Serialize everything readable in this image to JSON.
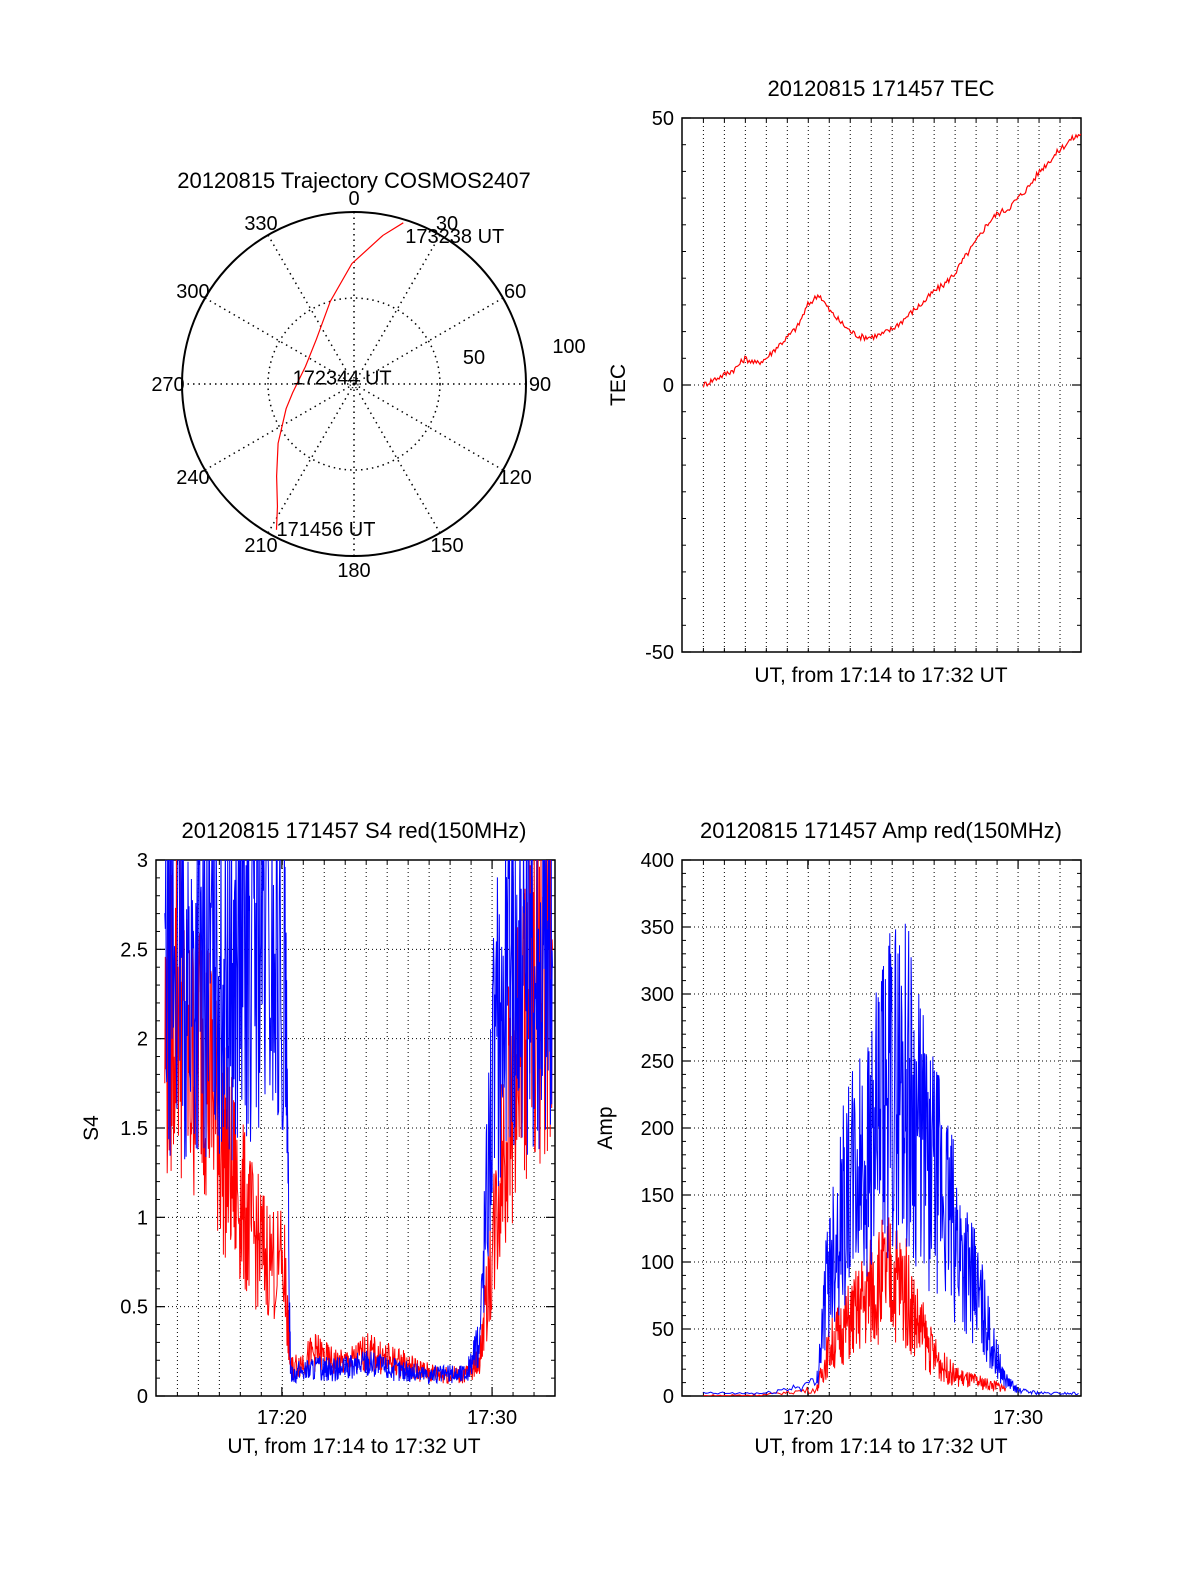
{
  "colors": {
    "red": "#ff0000",
    "blue": "#0000ff",
    "axis": "#000000",
    "grid": "#000000"
  },
  "chart_data": [
    {
      "type": "polar",
      "title": "20120815 Trajectory COSMOS2407",
      "angle_labels": [
        "0",
        "30",
        "60",
        "90",
        "120",
        "150",
        "180",
        "210",
        "240",
        "270",
        "300",
        "330"
      ],
      "angles_deg": [
        0,
        30,
        60,
        90,
        120,
        150,
        180,
        210,
        240,
        270,
        300,
        330
      ],
      "radial_labels": [
        "50",
        "100"
      ],
      "radial_values": [
        50,
        100
      ],
      "rmax": 100,
      "series": [
        {
          "color": "red",
          "points": [
            {
              "az": 208,
              "r": 96
            },
            {
              "az": 212,
              "r": 84
            },
            {
              "az": 220,
              "r": 70
            },
            {
              "az": 232,
              "r": 56
            },
            {
              "az": 250,
              "r": 42
            },
            {
              "az": 262,
              "r": 36
            },
            {
              "az": 290,
              "r": 30
            },
            {
              "az": 320,
              "r": 34
            },
            {
              "az": 344,
              "r": 50
            },
            {
              "az": 359,
              "r": 70
            },
            {
              "az": 11,
              "r": 88
            },
            {
              "az": 17,
              "r": 98
            }
          ]
        }
      ],
      "annotations": [
        {
          "text": "171456 UT",
          "az": 208,
          "r": 96
        },
        {
          "text": "172344 UT",
          "az": 262,
          "r": 36
        },
        {
          "text": "173238 UT",
          "az": 17,
          "r": 98
        }
      ]
    },
    {
      "type": "line",
      "title": "20120815 171457 TEC",
      "xlabel": "UT, from 17:14 to 17:32 UT",
      "ylabel": "TEC",
      "xlim": [
        17.233,
        17.55
      ],
      "ylim": [
        -50,
        50
      ],
      "yticks": [
        -50,
        0,
        50
      ],
      "ytick_labels": [
        "-50",
        "0",
        "50"
      ],
      "xticks": [],
      "xtick_labels": [],
      "grid": true,
      "series": [
        {
          "color": "red",
          "x": [
            17.25,
            17.258,
            17.267,
            17.275,
            17.283,
            17.292,
            17.3,
            17.308,
            17.317,
            17.325,
            17.333,
            17.342,
            17.35,
            17.358,
            17.367,
            17.375,
            17.383,
            17.392,
            17.4,
            17.408,
            17.417,
            17.425,
            17.433,
            17.442,
            17.45,
            17.458,
            17.467,
            17.475,
            17.483,
            17.492,
            17.5,
            17.508,
            17.517,
            17.525,
            17.533,
            17.542,
            17.55
          ],
          "y": [
            0,
            1,
            2,
            3,
            5,
            4,
            5,
            7,
            9,
            11,
            15,
            17,
            14,
            12,
            10,
            9,
            9,
            9.5,
            10.5,
            12,
            14,
            15.5,
            17.5,
            19,
            21,
            24,
            27,
            30,
            32,
            33,
            35,
            37,
            40,
            42,
            44,
            46,
            47
          ]
        }
      ]
    },
    {
      "type": "line",
      "title": "20120815 171457 S4 red(150MHz)",
      "xlabel": "UT, from 17:14 to 17:32 UT",
      "ylabel": "S4",
      "xlim": [
        17.233,
        17.55
      ],
      "ylim": [
        0,
        3
      ],
      "yticks": [
        0,
        0.5,
        1,
        1.5,
        2,
        2.5,
        3
      ],
      "ytick_labels": [
        "0",
        "0.5",
        "1",
        "1.5",
        "2",
        "2.5",
        "3"
      ],
      "xticks": [
        17.333,
        17.5
      ],
      "xtick_labels": [
        "17:20",
        "17:30"
      ],
      "grid": true,
      "series": [
        {
          "color": "red",
          "x": [
            17.24,
            17.25,
            17.26,
            17.27,
            17.28,
            17.29,
            17.3,
            17.31,
            17.32,
            17.335,
            17.34,
            17.35,
            17.36,
            17.37,
            17.38,
            17.39,
            17.4,
            17.41,
            17.42,
            17.43,
            17.44,
            17.45,
            17.46,
            17.47,
            17.48,
            17.49,
            17.5,
            17.51,
            17.52,
            17.53,
            17.54,
            17.548
          ],
          "y": [
            2.0,
            2.3,
            1.8,
            2.1,
            1.6,
            1.3,
            1.1,
            0.9,
            0.8,
            0.7,
            0.15,
            0.2,
            0.25,
            0.2,
            0.18,
            0.2,
            0.25,
            0.22,
            0.2,
            0.18,
            0.15,
            0.13,
            0.12,
            0.12,
            0.12,
            0.2,
            0.8,
            1.5,
            1.9,
            2.2,
            2.4,
            2.5
          ]
        },
        {
          "color": "blue",
          "x": [
            17.24,
            17.25,
            17.26,
            17.27,
            17.28,
            17.29,
            17.3,
            17.31,
            17.32,
            17.335,
            17.34,
            17.35,
            17.36,
            17.37,
            17.38,
            17.39,
            17.4,
            17.41,
            17.42,
            17.43,
            17.44,
            17.45,
            17.46,
            17.47,
            17.48,
            17.49,
            17.5,
            17.51,
            17.52,
            17.53,
            17.54,
            17.548
          ],
          "y": [
            2.4,
            2.5,
            2.3,
            2.4,
            2.5,
            2.3,
            2.4,
            2.6,
            2.5,
            2.4,
            0.13,
            0.14,
            0.16,
            0.15,
            0.15,
            0.16,
            0.2,
            0.17,
            0.15,
            0.14,
            0.13,
            0.12,
            0.12,
            0.12,
            0.13,
            0.3,
            1.8,
            2.3,
            2.5,
            2.4,
            2.5,
            2.4
          ]
        }
      ]
    },
    {
      "type": "line",
      "title": "20120815 171457 Amp red(150MHz)",
      "xlabel": "UT, from 17:14 to 17:32 UT",
      "ylabel": "Amp",
      "xlim": [
        17.233,
        17.55
      ],
      "ylim": [
        0,
        400
      ],
      "yticks": [
        0,
        50,
        100,
        150,
        200,
        250,
        300,
        350,
        400
      ],
      "ytick_labels": [
        "0",
        "50",
        "100",
        "150",
        "200",
        "250",
        "300",
        "350",
        "400"
      ],
      "xticks": [
        17.333,
        17.5
      ],
      "xtick_labels": [
        "17:20",
        "17:30"
      ],
      "grid": true,
      "series": [
        {
          "color": "red",
          "x": [
            17.25,
            17.3,
            17.34,
            17.35,
            17.36,
            17.37,
            17.38,
            17.39,
            17.4,
            17.41,
            17.42,
            17.43,
            17.44,
            17.45,
            17.46,
            17.47,
            17.48,
            17.49
          ],
          "y": [
            0,
            1,
            5,
            35,
            50,
            60,
            75,
            85,
            90,
            80,
            55,
            35,
            22,
            15,
            12,
            10,
            8,
            6
          ]
        },
        {
          "color": "blue",
          "x": [
            17.25,
            17.3,
            17.34,
            17.35,
            17.36,
            17.37,
            17.38,
            17.39,
            17.4,
            17.41,
            17.42,
            17.43,
            17.44,
            17.45,
            17.46,
            17.47,
            17.48,
            17.49,
            17.5,
            17.52,
            17.548
          ],
          "y": [
            2,
            2,
            10,
            100,
            140,
            160,
            180,
            200,
            230,
            240,
            200,
            170,
            150,
            120,
            95,
            70,
            35,
            12,
            4,
            2,
            2
          ]
        }
      ]
    }
  ]
}
